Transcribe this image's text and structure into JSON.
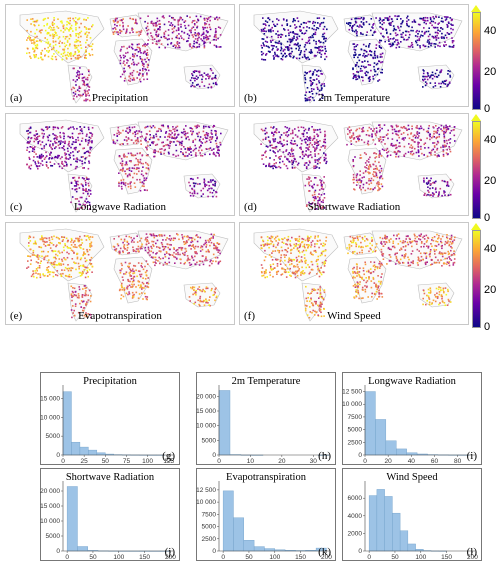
{
  "colorbar": {
    "ticks": [
      "0",
      "20",
      "40"
    ],
    "max_value": 48
  },
  "map_panels": [
    {
      "letter": "(a)",
      "title": "Precipitation",
      "intensity": [
        0.9,
        0.35,
        0.5,
        0.35,
        0.4,
        0.2
      ]
    },
    {
      "letter": "(b)",
      "title": "2m Temperature",
      "intensity": [
        0.05,
        0.05,
        0.05,
        0.1,
        0.05,
        0.05
      ]
    },
    {
      "letter": "(c)",
      "title": "Longwave Radiation",
      "intensity": [
        0.3,
        0.35,
        0.4,
        0.35,
        0.45,
        0.25
      ]
    },
    {
      "letter": "(d)",
      "title": "Shortwave Radiation",
      "intensity": [
        0.3,
        0.4,
        0.45,
        0.4,
        0.5,
        0.3
      ]
    },
    {
      "letter": "(e)",
      "title": "Evapotranspiration",
      "intensity": [
        0.8,
        0.55,
        0.6,
        0.55,
        0.65,
        0.75
      ]
    },
    {
      "letter": "(f)",
      "title": "Wind Speed",
      "intensity": [
        0.75,
        0.7,
        0.8,
        0.6,
        0.7,
        0.8
      ]
    }
  ],
  "chart_data": [
    {
      "type": "bar",
      "title": "Precipitation",
      "letter": "(g)",
      "bin_width": 10,
      "x_start": 0,
      "xlim": [
        0,
        130
      ],
      "ylim": [
        0,
        17500
      ],
      "xticks": [
        0,
        25,
        50,
        75,
        100,
        125
      ],
      "yticks": [
        0,
        5000,
        10000,
        15000
      ],
      "ytick_labels": [
        "0",
        "5000",
        "10 000",
        "15 000"
      ],
      "values": [
        16800,
        3400,
        2100,
        1300,
        600,
        250,
        100,
        50,
        20,
        10,
        5,
        5
      ]
    },
    {
      "type": "bar",
      "title": "2m Temperature",
      "letter": "(h)",
      "bin_width": 3.5,
      "x_start": 0,
      "xlim": [
        0,
        35
      ],
      "ylim": [
        0,
        22500
      ],
      "xticks": [
        0,
        10,
        20,
        30
      ],
      "yticks": [
        0,
        5000,
        10000,
        15000,
        20000
      ],
      "ytick_labels": [
        "0",
        "5000",
        "10 000",
        "15 000",
        "20 000"
      ],
      "values": [
        22000,
        150,
        20,
        5,
        0,
        0,
        0,
        0,
        0,
        3
      ]
    },
    {
      "type": "bar",
      "title": "Longwave Radiation",
      "letter": "(i)",
      "bin_width": 9,
      "x_start": 0,
      "xlim": [
        0,
        95
      ],
      "ylim": [
        0,
        13000
      ],
      "xticks": [
        0,
        20,
        40,
        60,
        80
      ],
      "yticks": [
        0,
        2500,
        5000,
        7500,
        10000,
        12500
      ],
      "ytick_labels": [
        "0",
        "2500",
        "5000",
        "7500",
        "10 000",
        "12 500"
      ],
      "values": [
        12500,
        7000,
        2800,
        1200,
        450,
        200,
        80,
        30,
        10,
        5
      ]
    },
    {
      "type": "bar",
      "title": "Shortwave Radiation",
      "letter": "(j)",
      "bin_width": 20,
      "x_start": 0,
      "xlim": [
        -8,
        205
      ],
      "ylim": [
        0,
        22000
      ],
      "xticks": [
        0,
        50,
        100,
        150,
        200
      ],
      "yticks": [
        0,
        5000,
        10000,
        15000,
        20000
      ],
      "ytick_labels": [
        "0",
        "5000",
        "10 000",
        "15 000",
        "20 000"
      ],
      "values": [
        21500,
        1500,
        200,
        60,
        20,
        5,
        3,
        2,
        1,
        1
      ]
    },
    {
      "type": "bar",
      "title": "Evapotranspiration",
      "letter": "(k)",
      "bin_width": 20,
      "x_start": 0,
      "xlim": [
        -8,
        205
      ],
      "ylim": [
        0,
        13500
      ],
      "xticks": [
        0,
        50,
        100,
        150,
        200
      ],
      "yticks": [
        0,
        2500,
        5000,
        7500,
        10000,
        12500
      ],
      "ytick_labels": [
        "0",
        "2500",
        "5000",
        "7500",
        "10 000",
        "12 500"
      ],
      "values": [
        12300,
        6800,
        2200,
        900,
        500,
        250,
        150,
        100,
        150,
        600
      ]
    },
    {
      "type": "bar",
      "title": "Wind Speed",
      "letter": "(l)",
      "bin_width": 15,
      "x_start": 0,
      "xlim": [
        -8,
        205
      ],
      "ylim": [
        0,
        7500
      ],
      "xticks": [
        0,
        50,
        100,
        150,
        200
      ],
      "yticks": [
        0,
        2000,
        4000,
        6000
      ],
      "ytick_labels": [
        "0",
        "2000",
        "4000",
        "6000"
      ],
      "values": [
        6300,
        7000,
        6200,
        4300,
        2300,
        800,
        200,
        50,
        10,
        5
      ]
    }
  ]
}
